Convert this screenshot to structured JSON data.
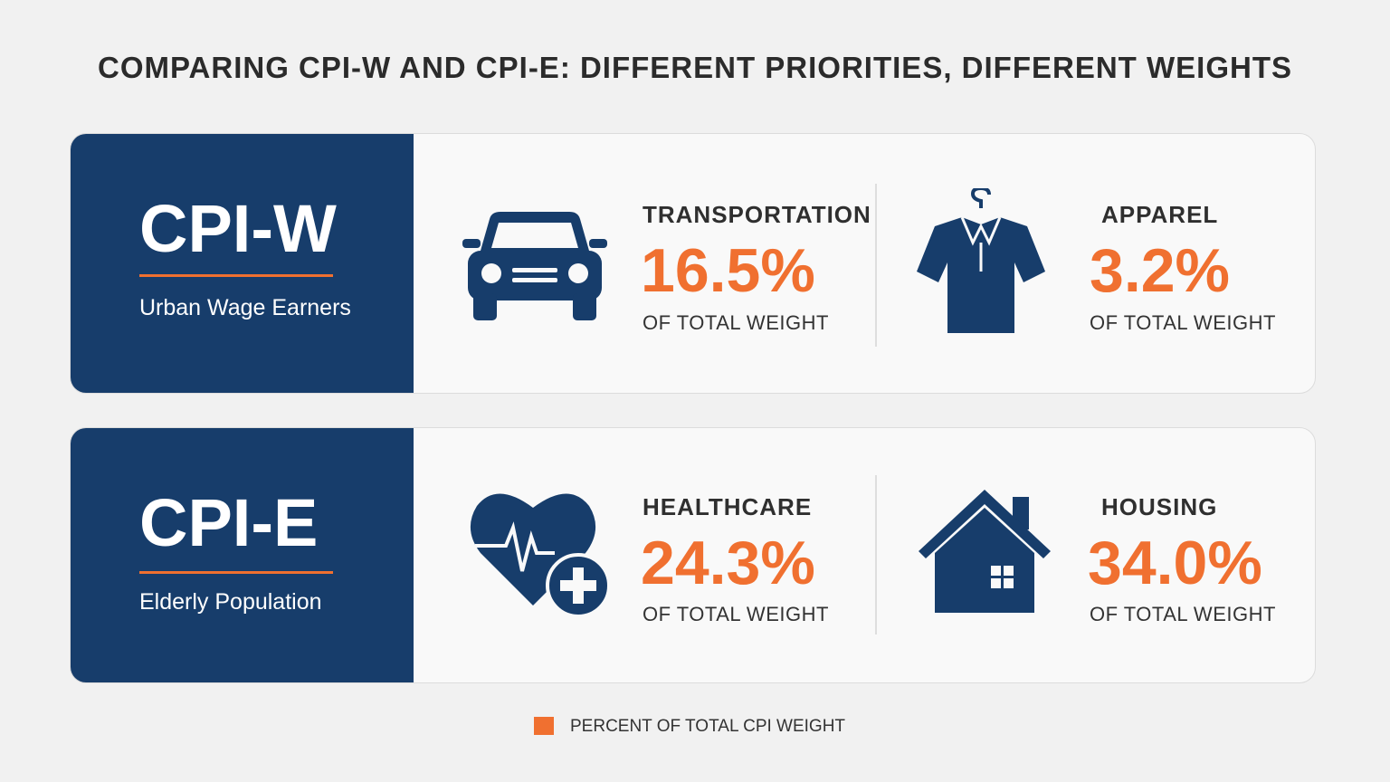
{
  "title": "COMPARING CPI-W AND CPI-E: DIFFERENT PRIORITIES, DIFFERENT WEIGHTS",
  "panels": [
    {
      "name": "CPI-W",
      "subtitle": "Urban Wage Earners",
      "items": [
        {
          "label": "TRANSPORTATION",
          "value": "16.5%",
          "caption": "OF TOTAL WEIGHT"
        },
        {
          "label": "APPAREL",
          "value": "3.2%",
          "caption": "OF TOTAL WEIGHT"
        }
      ]
    },
    {
      "name": "CPI-E",
      "subtitle": "Elderly Population",
      "items": [
        {
          "label": "HEALTHCARE",
          "value": "24.3%",
          "caption": "OF TOTAL WEIGHT"
        },
        {
          "label": "HOUSING",
          "value": "34.0%",
          "caption": "OF TOTAL WEIGHT"
        }
      ]
    }
  ],
  "legend": {
    "label": "PERCENT OF TOTAL CPI WEIGHT"
  }
}
